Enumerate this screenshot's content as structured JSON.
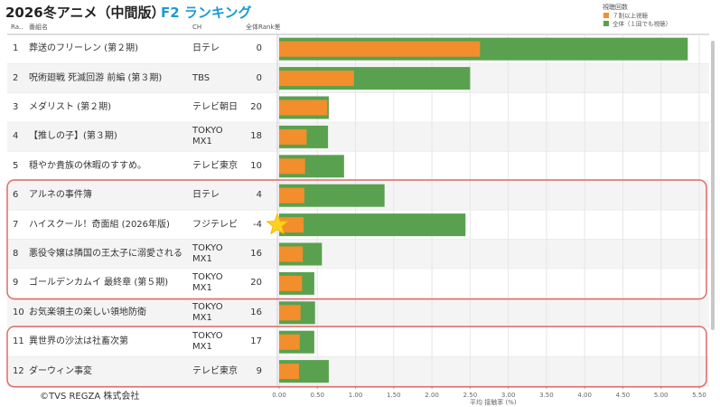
{
  "chart_data": {
    "type": "bar",
    "title": "2026冬アニメ（中間版）",
    "subtitle": "F2 ランキング",
    "columns": [
      "Ra..",
      "番組名",
      "CH",
      "全体Rank差"
    ],
    "ranks": [
      1,
      2,
      3,
      4,
      5,
      6,
      7,
      8,
      9,
      10,
      11,
      12
    ],
    "categories": [
      "葬送のフリーレン (第２期)",
      "呪術廻戦 死滅回游 前編 (第３期)",
      "メダリスト (第２期)",
      "【推しの子】(第３期)",
      "穏やか貴族の休暇のすすめ。",
      "アルネの事件簿",
      "ハイスクール！奇面組 (2026年版)",
      "悪役令嬢は隣国の王太子に溺愛される",
      "ゴールデンカムイ 最終章 (第５期)",
      "お気楽領主の楽しい領地防衛",
      "異世界の沙汰は社畜次第",
      "ダーウィン事変"
    ],
    "channels": [
      "日テレ",
      "TBS",
      "テレビ朝日",
      "TOKYO MX1",
      "テレビ東京",
      "日テレ",
      "フジテレビ",
      "TOKYO MX1",
      "TOKYO MX1",
      "TOKYO MX1",
      "TOKYO MX1",
      "テレビ東京"
    ],
    "rank_diff": [
      0,
      0,
      20,
      18,
      10,
      4,
      -4,
      16,
      20,
      16,
      17,
      9
    ],
    "legend_title": "視聴回数",
    "series": [
      {
        "name": "７割以上視聴",
        "color": "#f28e2b",
        "values": [
          2.63,
          0.98,
          0.63,
          0.36,
          0.34,
          0.33,
          0.32,
          0.31,
          0.3,
          0.28,
          0.27,
          0.26
        ]
      },
      {
        "name": "全体（１回でも視聴）",
        "color": "#59a14f",
        "values": [
          5.35,
          2.5,
          0.65,
          0.64,
          0.85,
          1.38,
          2.44,
          0.56,
          0.46,
          0.47,
          0.46,
          0.65
        ]
      }
    ],
    "xlabel": "平均 接触率 (%)",
    "xlim": [
      0,
      5.5
    ],
    "xticks": [
      {
        "value": 0,
        "label": "0.00"
      },
      {
        "value": 0.5,
        "label": "0.50"
      },
      {
        "value": 1,
        "label": "1.00"
      },
      {
        "value": 1.5,
        "label": "1.50"
      },
      {
        "value": 2,
        "label": "2.00"
      },
      {
        "value": 2.5,
        "label": "2.50"
      },
      {
        "value": 3,
        "label": "3.00"
      },
      {
        "value": 3.5,
        "label": "3.50"
      },
      {
        "value": 4,
        "label": "4.00"
      },
      {
        "value": 4.5,
        "label": "4.50"
      },
      {
        "value": 5,
        "label": "5.00"
      },
      {
        "value": 5.5,
        "label": "5.50"
      }
    ],
    "grid": true,
    "legend": "top-right",
    "footer": "©TVS REGZA 株式会社"
  }
}
